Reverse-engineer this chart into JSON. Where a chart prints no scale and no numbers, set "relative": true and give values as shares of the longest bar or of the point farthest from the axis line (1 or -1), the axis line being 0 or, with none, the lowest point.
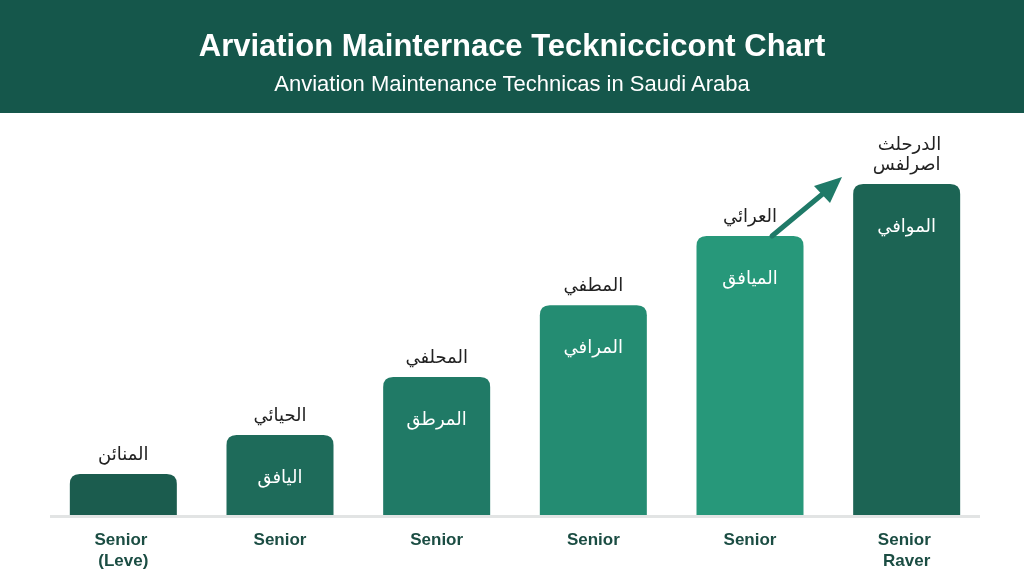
{
  "chart_data": {
    "type": "bar",
    "title": "Arviation Mainternace Teckniccicont Chart",
    "subtitle": "Anviation Maintenance Technicas in Saudi Araba",
    "categories": [
      "Senior (Leve)",
      "Senior",
      "Senior",
      "Senior",
      "Senior",
      "Senior Raver"
    ],
    "values": [
      0.124,
      0.242,
      0.417,
      0.634,
      0.843,
      1
    ],
    "colors": [
      "#1b5c4e",
      "#1e6b5a",
      "#207a66",
      "#248c72",
      "#27987a",
      "#1c6454"
    ],
    "relative": true,
    "annotations": [
      "المنائن",
      "الحيائي",
      "المحلفي",
      "المطفي",
      "العرائي",
      "الدرحلث اصرلفس",
      "اليافق",
      "المرطق",
      "المرافي",
      "الميافق",
      "الموافي"
    ]
  }
}
